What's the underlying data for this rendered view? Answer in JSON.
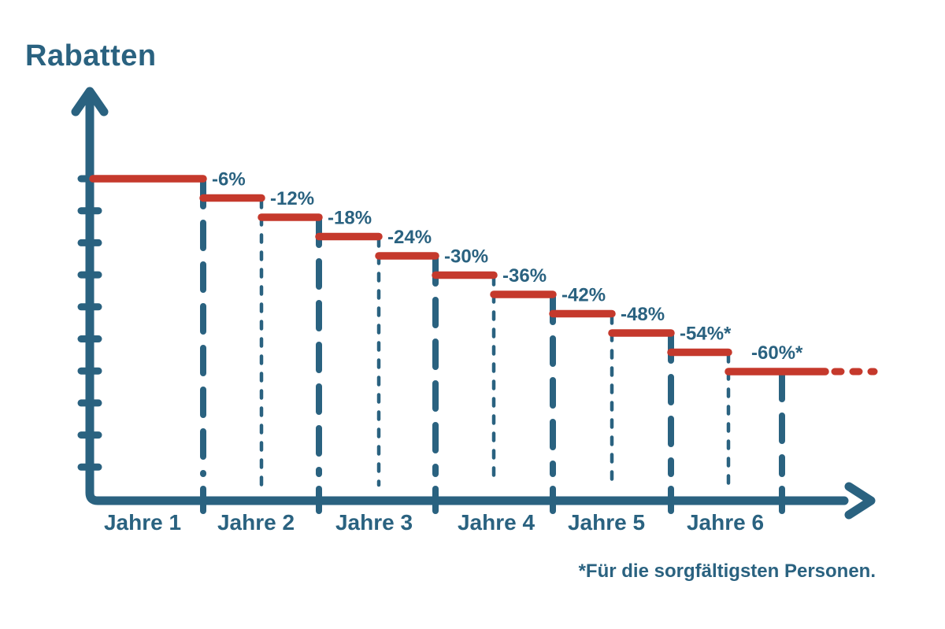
{
  "colors": {
    "blue": "#2A6280",
    "red": "#C5392C",
    "background": "#FFFFFF"
  },
  "chart_data": {
    "type": "line",
    "variant": "descending-step-discount-chart",
    "title": "Rabatten",
    "categories": [
      "Jahre 1",
      "Jahre 2",
      "Jahre 3",
      "Jahre 4",
      "Jahre 5",
      "Jahre 6"
    ],
    "steps_per_category": 2,
    "start_level_pct": 0,
    "steps": [
      {
        "label": "-6%",
        "value_pct": -6
      },
      {
        "label": "-12%",
        "value_pct": -12
      },
      {
        "label": "-18%",
        "value_pct": -18
      },
      {
        "label": "-24%",
        "value_pct": -24
      },
      {
        "label": "-30%",
        "value_pct": -30
      },
      {
        "label": "-36%",
        "value_pct": -36
      },
      {
        "label": "-42%",
        "value_pct": -42
      },
      {
        "label": "-48%",
        "value_pct": -48
      },
      {
        "label": "-54%",
        "value_pct": -54,
        "asterisk": true,
        "display_label": "-54%*"
      },
      {
        "label": "-60%",
        "value_pct": -60,
        "asterisk": true,
        "display_label": "-60%*"
      }
    ],
    "final_segment_continues_dashed": true,
    "footnote": "*Für die sorgfältigsten Personen.",
    "axes": {
      "x_label": "",
      "y_label": "",
      "x_arrow": true,
      "y_arrow": true,
      "y_tick_count": 10,
      "x_ticks_at": "category boundaries",
      "gridlines": false
    },
    "legend": "none"
  }
}
